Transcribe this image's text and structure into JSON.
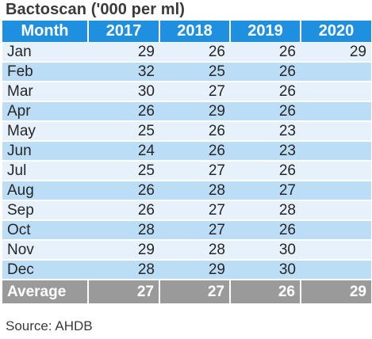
{
  "title": "Bactoscan ('000 per ml)",
  "columns": [
    "Month",
    "2017",
    "2018",
    "2019",
    "2020"
  ],
  "rows": [
    {
      "month": "Jan",
      "values": [
        "29",
        "26",
        "26",
        "29"
      ]
    },
    {
      "month": "Feb",
      "values": [
        "32",
        "25",
        "26",
        ""
      ]
    },
    {
      "month": "Mar",
      "values": [
        "30",
        "27",
        "26",
        ""
      ]
    },
    {
      "month": "Apr",
      "values": [
        "26",
        "29",
        "26",
        ""
      ]
    },
    {
      "month": "May",
      "values": [
        "25",
        "26",
        "23",
        ""
      ]
    },
    {
      "month": "Jun",
      "values": [
        "24",
        "26",
        "23",
        ""
      ]
    },
    {
      "month": "Jul",
      "values": [
        "25",
        "27",
        "26",
        ""
      ]
    },
    {
      "month": "Aug",
      "values": [
        "26",
        "28",
        "27",
        ""
      ]
    },
    {
      "month": "Sep",
      "values": [
        "26",
        "27",
        "28",
        ""
      ]
    },
    {
      "month": "Oct",
      "values": [
        "28",
        "27",
        "26",
        ""
      ]
    },
    {
      "month": "Nov",
      "values": [
        "29",
        "28",
        "30",
        ""
      ]
    },
    {
      "month": "Dec",
      "values": [
        "28",
        "29",
        "30",
        ""
      ]
    }
  ],
  "average": {
    "label": "Average",
    "values": [
      "27",
      "27",
      "26",
      "29"
    ]
  },
  "source": "Source: AHDB",
  "colors": {
    "header": "#1f8fe0",
    "row_light": "#e6f1fb",
    "row_dark": "#bcddf6",
    "average": "#9a9a9a"
  }
}
